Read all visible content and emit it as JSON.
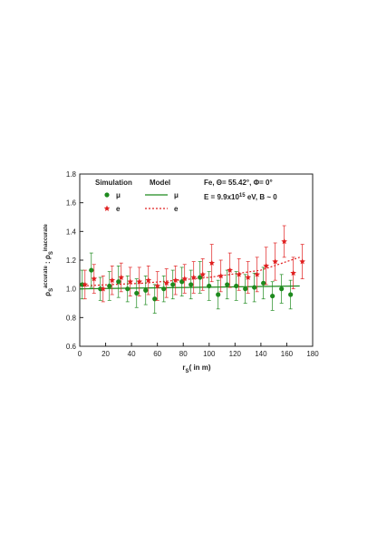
{
  "chart_data": {
    "type": "scatter",
    "xlabel": [
      "r",
      "S",
      "( in m)"
    ],
    "ylabel": [
      "ρ",
      "S",
      "accurate",
      " : ρ",
      "S",
      "inaccurate"
    ],
    "annotations": [
      [
        "Fe, Θ= 55.42°,   Φ= 0°"
      ],
      [
        "E = 9.9x10",
        "15",
        " eV, B ~ 0"
      ]
    ],
    "legend_headers": [
      "Simulation",
      "Model"
    ],
    "xlim": [
      0,
      180
    ],
    "ylim": [
      0.6,
      1.8
    ],
    "xticks": [
      0,
      20,
      40,
      60,
      80,
      100,
      120,
      140,
      160,
      180
    ],
    "yticks": [
      0.6,
      0.8,
      {
        "value": 1,
        "label": "1.0"
      },
      1.2,
      1.4,
      1.6,
      1.8
    ],
    "series": [
      {
        "name": "μ",
        "color": "#1e8a1e",
        "marker": "circle",
        "x": [
          3,
          10,
          17,
          24,
          31,
          38,
          45,
          52,
          59,
          66,
          73,
          80,
          87,
          94,
          101,
          108,
          115,
          122,
          129,
          136,
          143,
          150,
          157,
          164
        ],
        "values": [
          1.03,
          1.13,
          1.0,
          1.02,
          1.05,
          1.0,
          0.97,
          0.99,
          0.93,
          1.0,
          1.03,
          1.05,
          1.03,
          1.08,
          1.02,
          0.96,
          1.03,
          1.02,
          1.0,
          1.01,
          1.04,
          0.95,
          1.0,
          0.96
        ],
        "errors": [
          0.1,
          0.12,
          0.08,
          0.1,
          0.11,
          0.09,
          0.1,
          0.1,
          0.1,
          0.09,
          0.1,
          0.1,
          0.1,
          0.11,
          0.1,
          0.1,
          0.1,
          0.1,
          0.1,
          0.1,
          0.11,
          0.1,
          0.1,
          0.1
        ]
      },
      {
        "name": "e",
        "color": "#e02020",
        "marker": "star",
        "x": [
          3,
          10,
          17,
          24,
          31,
          38,
          45,
          52,
          59,
          66,
          73,
          80,
          87,
          94,
          101,
          108,
          115,
          122,
          129,
          136,
          143,
          150,
          157,
          164,
          171
        ],
        "values": [
          1.03,
          1.07,
          1.0,
          1.06,
          1.08,
          1.05,
          1.05,
          1.06,
          1.02,
          1.04,
          1.06,
          1.07,
          1.08,
          1.1,
          1.18,
          1.09,
          1.13,
          1.1,
          1.08,
          1.1,
          1.16,
          1.19,
          1.33,
          1.11,
          1.19
        ],
        "errors": [
          0.1,
          0.1,
          0.09,
          0.1,
          0.1,
          0.1,
          0.1,
          0.1,
          0.1,
          0.1,
          0.1,
          0.1,
          0.11,
          0.11,
          0.13,
          0.11,
          0.12,
          0.11,
          0.11,
          0.12,
          0.13,
          0.13,
          0.11,
          0.11,
          0.12
        ]
      }
    ],
    "model": [
      {
        "name": "μ",
        "color": "#1e8a1e",
        "dash": false,
        "x": [
          0,
          170
        ],
        "values": [
          1.0,
          1.02
        ]
      },
      {
        "name": "e",
        "color": "#e02020",
        "dash": true,
        "x": [
          0,
          50,
          100,
          140,
          170
        ],
        "values": [
          1.02,
          1.04,
          1.08,
          1.13,
          1.22
        ]
      }
    ]
  }
}
